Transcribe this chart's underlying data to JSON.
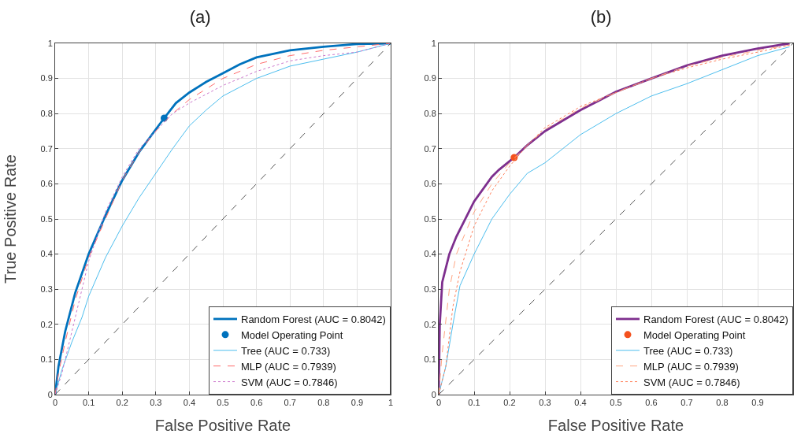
{
  "chart_data": [
    {
      "type": "line",
      "title": "(a)",
      "xlabel": "False Positive Rate",
      "ylabel": "True Positive Rate",
      "xlim": [
        0,
        1
      ],
      "ylim": [
        0,
        1
      ],
      "xticks": [
        0,
        0.1,
        0.2,
        0.3,
        0.4,
        0.5,
        0.6,
        0.7,
        0.8,
        0.9,
        1
      ],
      "yticks": [
        0,
        0.1,
        0.2,
        0.3,
        0.4,
        0.5,
        0.6,
        0.7,
        0.8,
        0.9,
        1
      ],
      "grid": true,
      "legend": "bottom right",
      "series": [
        {
          "name": "Random Forest (AUC = 0.8042)",
          "color": "#0072bd",
          "line_style": "solid",
          "x": [
            0,
            0.01,
            0.03,
            0.06,
            0.1,
            0.15,
            0.2,
            0.25,
            0.3,
            0.325,
            0.36,
            0.4,
            0.45,
            0.5,
            0.55,
            0.6,
            0.7,
            0.8,
            0.9,
            1
          ],
          "values": [
            0,
            0.08,
            0.18,
            0.29,
            0.4,
            0.51,
            0.61,
            0.69,
            0.755,
            0.787,
            0.83,
            0.86,
            0.89,
            0.915,
            0.94,
            0.96,
            0.98,
            0.99,
            0.998,
            1
          ]
        },
        {
          "name": "Model Operating Point",
          "type": "scatter",
          "marker": "circle",
          "color": "#0072bd",
          "x": [
            0.325
          ],
          "values": [
            0.787
          ]
        },
        {
          "name": "Tree (AUC = 0.733)",
          "color": "#4dbeee",
          "line_style": "solid",
          "x": [
            0,
            0.02,
            0.05,
            0.08,
            0.1,
            0.15,
            0.2,
            0.25,
            0.3,
            0.35,
            0.4,
            0.45,
            0.5,
            0.55,
            0.6,
            0.7,
            0.8,
            0.9,
            1
          ],
          "values": [
            0,
            0.07,
            0.15,
            0.22,
            0.28,
            0.39,
            0.48,
            0.56,
            0.63,
            0.7,
            0.765,
            0.81,
            0.85,
            0.875,
            0.9,
            0.935,
            0.955,
            0.975,
            1
          ]
        },
        {
          "name": "MLP (AUC = 0.7939)",
          "color": "#ff6b6b",
          "line_style": "dashed",
          "x": [
            0,
            0.01,
            0.03,
            0.06,
            0.1,
            0.15,
            0.2,
            0.25,
            0.3,
            0.35,
            0.4,
            0.5,
            0.6,
            0.7,
            0.8,
            0.9,
            1
          ],
          "values": [
            0,
            0.06,
            0.15,
            0.27,
            0.39,
            0.5,
            0.61,
            0.69,
            0.75,
            0.8,
            0.84,
            0.9,
            0.94,
            0.965,
            0.98,
            0.99,
            1
          ]
        },
        {
          "name": "SVM (AUC = 0.7846)",
          "color": "#cc77cc",
          "line_style": "dotted",
          "x": [
            0,
            0.02,
            0.05,
            0.08,
            0.1,
            0.15,
            0.2,
            0.25,
            0.3,
            0.35,
            0.4,
            0.5,
            0.6,
            0.7,
            0.8,
            0.9,
            1
          ],
          "values": [
            0,
            0.06,
            0.18,
            0.3,
            0.38,
            0.52,
            0.62,
            0.7,
            0.75,
            0.8,
            0.83,
            0.88,
            0.92,
            0.95,
            0.965,
            0.975,
            1
          ]
        },
        {
          "color": "#555555",
          "line_style": "dashed",
          "x": [
            0,
            1
          ],
          "values": [
            0,
            1
          ]
        }
      ]
    },
    {
      "type": "line",
      "title": "(b)",
      "xlabel": "False Positive Rate",
      "xlim": [
        0,
        1
      ],
      "ylim": [
        0,
        1
      ],
      "xticks": [
        0,
        0.1,
        0.2,
        0.3,
        0.4,
        0.5,
        0.6,
        0.7,
        0.8,
        0.9
      ],
      "yticks": [
        0,
        0.1,
        0.2,
        0.3,
        0.4,
        0.5,
        0.6,
        0.7,
        0.8,
        0.9,
        1
      ],
      "grid": true,
      "legend": "bottom right",
      "series": [
        {
          "name": "Random Forest (AUC = 0.8042)",
          "color": "#7e2f8e",
          "line_style": "solid",
          "x": [
            0,
            0.003,
            0.01,
            0.03,
            0.05,
            0.1,
            0.15,
            0.17,
            0.213,
            0.25,
            0.3,
            0.4,
            0.5,
            0.6,
            0.7,
            0.8,
            0.9,
            0.99
          ],
          "values": [
            0,
            0.2,
            0.32,
            0.4,
            0.45,
            0.55,
            0.62,
            0.64,
            0.675,
            0.71,
            0.75,
            0.81,
            0.862,
            0.9,
            0.937,
            0.965,
            0.985,
            1
          ]
        },
        {
          "name": "Model Operating Point",
          "type": "scatter",
          "marker": "circle",
          "color": "#f4511e",
          "x": [
            0.213
          ],
          "values": [
            0.675
          ]
        },
        {
          "name": "Tree (AUC = 0.733)",
          "color": "#4dbeee",
          "line_style": "solid",
          "x": [
            0,
            0.02,
            0.04,
            0.06,
            0.1,
            0.15,
            0.2,
            0.25,
            0.3,
            0.35,
            0.4,
            0.5,
            0.6,
            0.7,
            0.8,
            0.9,
            0.99
          ],
          "values": [
            0,
            0.08,
            0.2,
            0.31,
            0.4,
            0.5,
            0.57,
            0.63,
            0.66,
            0.7,
            0.74,
            0.8,
            0.85,
            0.885,
            0.925,
            0.965,
            0.99
          ]
        },
        {
          "name": "MLP (AUC = 0.7939)",
          "color": "#ffa784",
          "line_style": "dashed",
          "x": [
            0,
            0.01,
            0.03,
            0.05,
            0.1,
            0.15,
            0.2,
            0.25,
            0.3,
            0.4,
            0.5,
            0.6,
            0.7,
            0.8,
            0.9,
            0.99
          ],
          "values": [
            0,
            0.12,
            0.3,
            0.4,
            0.52,
            0.6,
            0.66,
            0.71,
            0.755,
            0.815,
            0.86,
            0.9,
            0.935,
            0.96,
            0.98,
            0.995
          ]
        },
        {
          "name": "SVM (AUC = 0.7846)",
          "color": "#ff7f5a",
          "line_style": "dotted",
          "x": [
            0,
            0.02,
            0.04,
            0.06,
            0.1,
            0.15,
            0.2,
            0.25,
            0.3,
            0.4,
            0.5,
            0.6,
            0.7,
            0.8,
            0.9,
            0.99
          ],
          "values": [
            0,
            0.08,
            0.25,
            0.35,
            0.48,
            0.58,
            0.65,
            0.71,
            0.76,
            0.82,
            0.86,
            0.9,
            0.93,
            0.955,
            0.975,
            0.995
          ]
        },
        {
          "color": "#555555",
          "line_style": "dashed",
          "x": [
            0,
            1
          ],
          "values": [
            0,
            1
          ]
        }
      ]
    }
  ]
}
